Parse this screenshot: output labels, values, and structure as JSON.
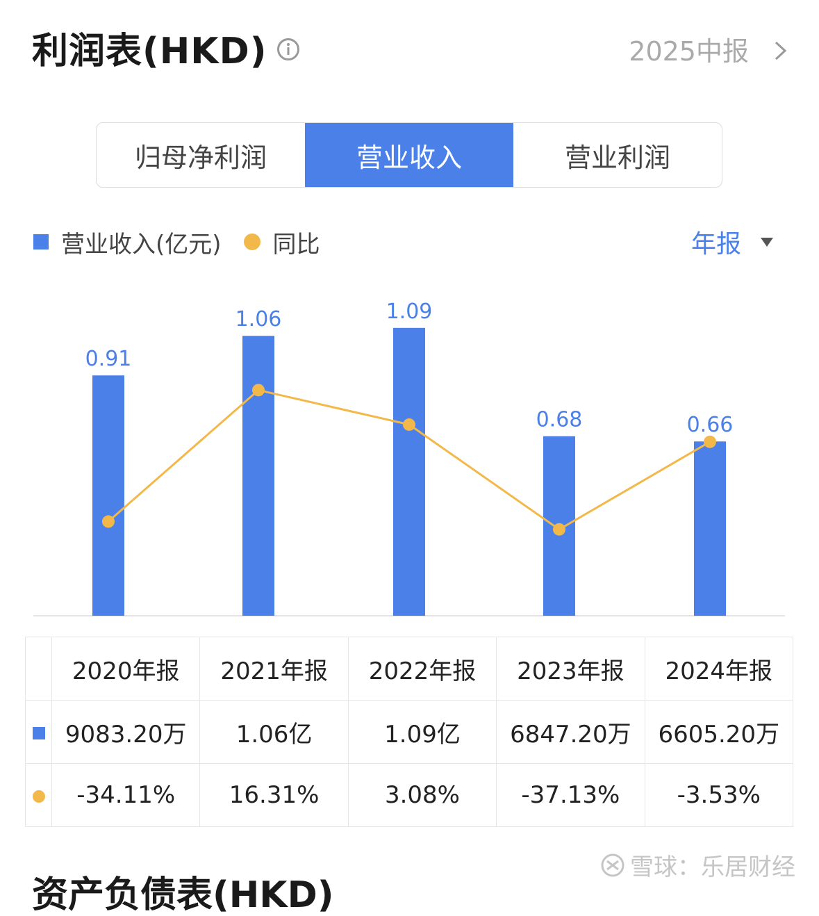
{
  "header": {
    "title": "利润表(HKD)",
    "period": "2025中报"
  },
  "tabs": [
    {
      "label": "归母净利润",
      "active": false
    },
    {
      "label": "营业收入",
      "active": true
    },
    {
      "label": "营业利润",
      "active": false
    }
  ],
  "legend": {
    "bar_label": "营业收入(亿元)",
    "line_label": "同比"
  },
  "period_select": "年报",
  "colors": {
    "bar": "#4a80e8",
    "line": "#f2b84a",
    "positive": "#e04a4a",
    "negative": "#2e9a5a"
  },
  "chart_data": {
    "type": "bar",
    "categories": [
      "2020年报",
      "2021年报",
      "2022年报",
      "2023年报",
      "2024年报"
    ],
    "series": [
      {
        "name": "营业收入(亿元)",
        "type": "bar",
        "values": [
          0.91,
          1.06,
          1.09,
          0.68,
          0.66
        ],
        "data_labels": [
          "0.91",
          "1.06",
          "1.09",
          "0.68",
          "0.66"
        ]
      },
      {
        "name": "同比",
        "type": "line",
        "values": [
          -34.11,
          16.31,
          3.08,
          -37.13,
          -3.53
        ]
      }
    ],
    "legend_position": "top-left",
    "grid": false
  },
  "table": {
    "headers": [
      "2020年报",
      "2021年报",
      "2022年报",
      "2023年报",
      "2024年报"
    ],
    "revenue": [
      "9083.20万",
      "1.06亿",
      "1.09亿",
      "6847.20万",
      "6605.20万"
    ],
    "yoy": [
      "-34.11%",
      "16.31%",
      "3.08%",
      "-37.13%",
      "-3.53%"
    ]
  },
  "watermark": "雪球：乐居财经",
  "next_section_title": "资产负债表(HKD)"
}
